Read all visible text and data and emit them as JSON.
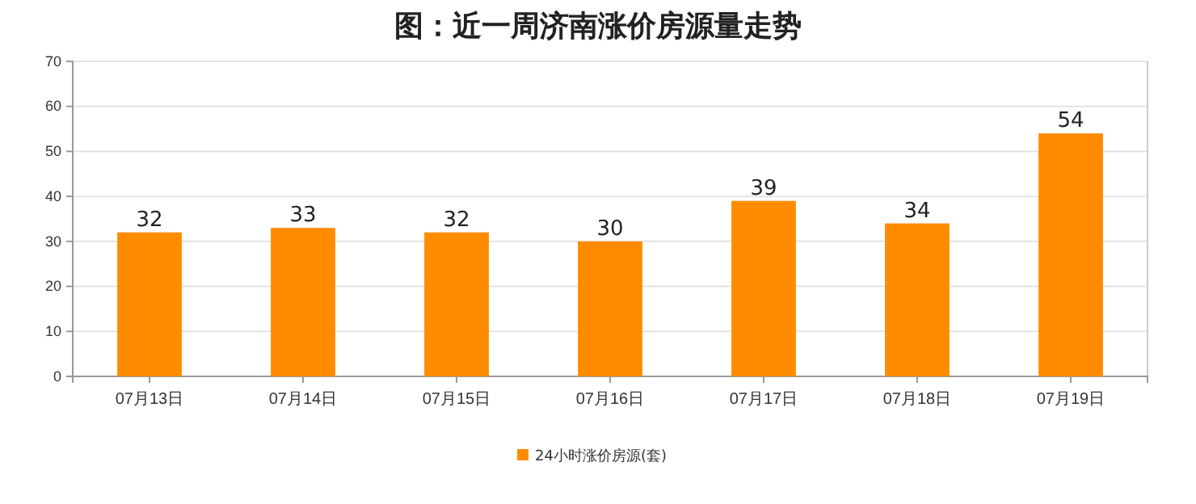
{
  "chart_data": {
    "type": "bar",
    "title": "图：近一周济南涨价房源量走势",
    "categories": [
      "07月13日",
      "07月14日",
      "07月15日",
      "07月16日",
      "07月17日",
      "07月18日",
      "07月19日"
    ],
    "series": [
      {
        "name": "24小时涨价房源(套)",
        "color": "#ff8c00",
        "values": [
          32,
          33,
          32,
          30,
          39,
          34,
          54
        ]
      }
    ],
    "ylim": [
      0,
      70
    ],
    "yticks": [
      0,
      10,
      20,
      30,
      40,
      50,
      60,
      70
    ],
    "grid": "y",
    "legend": "bottom",
    "data_labels": true
  }
}
